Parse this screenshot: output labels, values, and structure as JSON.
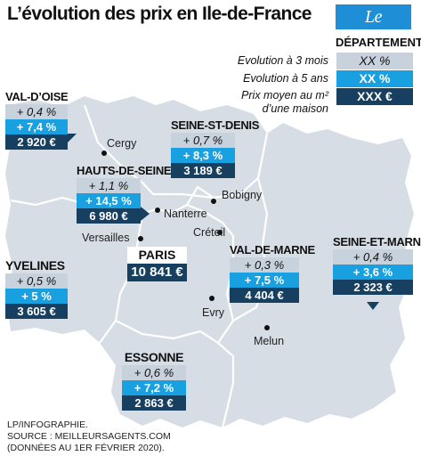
{
  "title": "L’évolution des prix en Ile-de-France",
  "logo": "Le Parisien",
  "legend": {
    "heading": "DÉPARTEMENT",
    "label_3m": "Evolution à 3 mois",
    "label_5y": "Evolution à 5 ans",
    "label_price_1": "Prix moyen au m²",
    "label_price_2": "d’une maison",
    "value_3m": "XX %",
    "value_5y": "XX %",
    "value_price": "XXX €"
  },
  "departments": {
    "val_doise": {
      "name": "VAL-D’OISE",
      "evo3m": "+ 0,4 %",
      "evo5y": "+ 7,4 %",
      "price": "2 920 €"
    },
    "seine_st_denis": {
      "name": "SEINE-ST-DENIS",
      "evo3m": "+ 0,7 %",
      "evo5y": "+ 8,3 %",
      "price": "3 189 €"
    },
    "hauts_de_seine": {
      "name": "HAUTS-DE-SEINE",
      "evo3m": "+ 1,1 %",
      "evo5y": "+ 14,5 %",
      "price": "6 980 €"
    },
    "yvelines": {
      "name": "YVELINES",
      "evo3m": "+ 0,5 %",
      "evo5y": "+ 5 %",
      "price": "3 605 €"
    },
    "paris": {
      "name": "PARIS",
      "price": "10 841 €"
    },
    "val_de_marne": {
      "name": "VAL-DE-MARNE",
      "evo3m": "+ 0,3 %",
      "evo5y": "+ 7,5 %",
      "price": "4 404 €"
    },
    "seine_et_marne": {
      "name": "SEINE-ET-MARNE",
      "evo3m": "+ 0,4 %",
      "evo5y": "+ 3,6 %",
      "price": "2 323 €"
    },
    "essonne": {
      "name": "ESSONNE",
      "evo3m": "+ 0,6 %",
      "evo5y": "+ 7,2 %",
      "price": "2 863 €"
    }
  },
  "cities": {
    "cergy": "Cergy",
    "bobigny": "Bobigny",
    "nanterre": "Nanterre",
    "versailles": "Versailles",
    "creteil": "Créteil",
    "evry": "Evry",
    "melun": "Melun"
  },
  "footer": {
    "line1": "LP/INFOGRAPHIE.",
    "line2": "SOURCE : MEILLEURSAGENTS.COM",
    "line3": "(DONNÉES AU 1ER FÉVRIER 2020)."
  },
  "colors": {
    "region_fill": "#d6dde5",
    "border": "#ffffff",
    "evo3m_bg": "#c8d2dc",
    "evo5y_bg": "#18a0e0",
    "price_bg": "#173f5f",
    "logo_bg": "#1e8fd6"
  }
}
